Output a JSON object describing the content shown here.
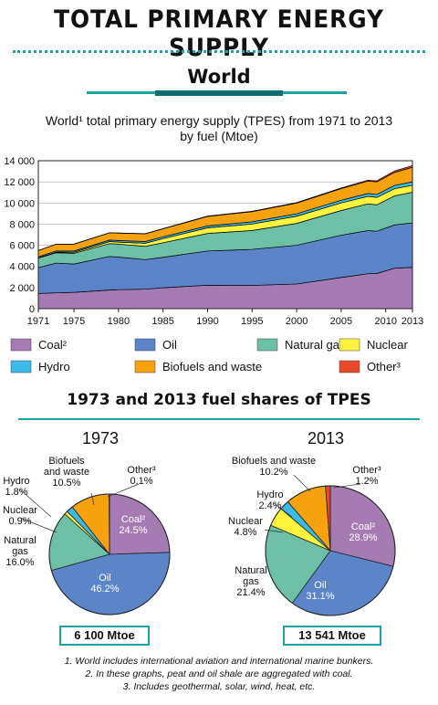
{
  "header": {
    "title": "TOTAL PRIMARY ENERGY SUPPLY",
    "region": "World"
  },
  "colors": {
    "Coal": "#a67ab3",
    "Oil": "#5b85c8",
    "Natural gas": "#6cc0a5",
    "Nuclear": "#fff33d",
    "Hydro": "#3dbbe8",
    "Biofuels and waste": "#f5a20e",
    "Other": "#e8492a",
    "accent": "#1aa3a6"
  },
  "area_chart_title_line1": "World¹ total primary energy supply (TPES) from 1971 to 2013",
  "area_chart_title_line2": "by fuel (Mtoe)",
  "legend": [
    {
      "label": "Coal²",
      "key": "Coal"
    },
    {
      "label": "Oil",
      "key": "Oil"
    },
    {
      "label": "Natural gas",
      "key": "Natural gas"
    },
    {
      "label": "Nuclear",
      "key": "Nuclear"
    },
    {
      "label": "Hydro",
      "key": "Hydro"
    },
    {
      "label": "Biofuels and waste",
      "key": "Biofuels and waste"
    },
    {
      "label": "Other³",
      "key": "Other"
    }
  ],
  "pie_section_title": "1973 and 2013 fuel shares of TPES",
  "pies": [
    {
      "year": "1973",
      "total": "6 100 Mtoe",
      "labels": {
        "coal": [
          "Coal²",
          "24.5%"
        ],
        "oil": [
          "Oil",
          "46.2%"
        ],
        "gas": [
          "Natural",
          "gas",
          "16.0%"
        ],
        "nuclear": [
          "Nuclear",
          "0.9%"
        ],
        "hydro": [
          "Hydro",
          "1.8%"
        ],
        "bio": [
          "Biofuels",
          "and waste",
          "10.5%"
        ],
        "other": [
          "Other³",
          "0.1%"
        ]
      }
    },
    {
      "year": "2013",
      "total": "13 541 Mtoe",
      "labels": {
        "coal": [
          "Coal²",
          "28.9%"
        ],
        "oil": [
          "Oil",
          "31.1%"
        ],
        "gas": [
          "Natural",
          "gas",
          "21.4%"
        ],
        "nuclear": [
          "Nuclear",
          "4.8%"
        ],
        "hydro": [
          "Hydro",
          "2.4%"
        ],
        "bio": [
          "Biofuels and waste",
          "10.2%"
        ],
        "other": [
          "Other³",
          "1.2%"
        ]
      }
    }
  ],
  "notes": [
    "1. World includes international aviation and international marine bunkers.",
    "2. In these graphs, peat and oil shale are aggregated with coal.",
    "3. Includes geothermal, solar, wind, heat, etc."
  ],
  "chart_data": [
    {
      "type": "area",
      "stacked": true,
      "title": "World¹ total primary energy supply (TPES) from 1971 to 2013 by fuel (Mtoe)",
      "x": [
        1971,
        1973,
        1975,
        1979,
        1980,
        1983,
        1985,
        1990,
        1995,
        2000,
        2005,
        2008,
        2009,
        2011,
        2013
      ],
      "xticks": [
        1971,
        1975,
        1980,
        1985,
        1990,
        1995,
        2000,
        2005,
        2010,
        2013
      ],
      "ylim": [
        0,
        14000
      ],
      "yticks": [
        0,
        2000,
        4000,
        6000,
        8000,
        10000,
        12000,
        14000
      ],
      "ytick_labels": [
        "0",
        "2 000",
        "4 000",
        "6 000",
        "8 000",
        "10 000",
        "12 000",
        "14 000"
      ],
      "grid": "horizontal",
      "series": [
        {
          "name": "Coal²",
          "key": "Coal",
          "values": [
            1440,
            1495,
            1545,
            1760,
            1800,
            1840,
            1980,
            2220,
            2200,
            2340,
            2950,
            3310,
            3330,
            3830,
            3910
          ]
        },
        {
          "name": "Oil",
          "key": "Oil",
          "values": [
            2440,
            2820,
            2680,
            3180,
            3080,
            2800,
            2880,
            3240,
            3410,
            3660,
            4000,
            4080,
            4000,
            4100,
            4210
          ]
        },
        {
          "name": "Natural gas",
          "key": "Natural gas",
          "values": [
            900,
            980,
            1010,
            1220,
            1230,
            1260,
            1380,
            1660,
            1790,
            2070,
            2340,
            2530,
            2500,
            2750,
            2900
          ]
        },
        {
          "name": "Nuclear",
          "key": "Nuclear",
          "values": [
            30,
            55,
            100,
            190,
            190,
            290,
            390,
            530,
            610,
            680,
            720,
            710,
            700,
            680,
            650
          ]
        },
        {
          "name": "Hydro",
          "key": "Hydro",
          "values": [
            100,
            110,
            120,
            140,
            150,
            160,
            170,
            180,
            210,
            230,
            250,
            270,
            280,
            300,
            330
          ]
        },
        {
          "name": "Biofuels and waste",
          "key": "Biofuels and waste",
          "values": [
            590,
            640,
            650,
            690,
            700,
            730,
            760,
            900,
            960,
            1010,
            1100,
            1170,
            1190,
            1240,
            1380
          ]
        },
        {
          "name": "Other³",
          "key": "Other",
          "values": [
            6,
            6,
            8,
            10,
            12,
            16,
            20,
            35,
            40,
            50,
            65,
            85,
            95,
            130,
            160
          ]
        }
      ]
    },
    {
      "type": "pie",
      "title": "1973",
      "total": "6 100 Mtoe",
      "categories": [
        "Coal²",
        "Oil",
        "Natural gas",
        "Nuclear",
        "Hydro",
        "Biofuels and waste",
        "Other³"
      ],
      "keys": [
        "Coal",
        "Oil",
        "Natural gas",
        "Nuclear",
        "Hydro",
        "Biofuels and waste",
        "Other"
      ],
      "values": [
        24.5,
        46.2,
        16.0,
        0.9,
        1.8,
        10.5,
        0.1
      ]
    },
    {
      "type": "pie",
      "title": "2013",
      "total": "13 541 Mtoe",
      "categories": [
        "Coal²",
        "Oil",
        "Natural gas",
        "Nuclear",
        "Hydro",
        "Biofuels and waste",
        "Other³"
      ],
      "keys": [
        "Coal",
        "Oil",
        "Natural gas",
        "Nuclear",
        "Hydro",
        "Biofuels and waste",
        "Other"
      ],
      "values": [
        28.9,
        31.1,
        21.4,
        4.8,
        2.4,
        10.2,
        1.2
      ]
    }
  ]
}
